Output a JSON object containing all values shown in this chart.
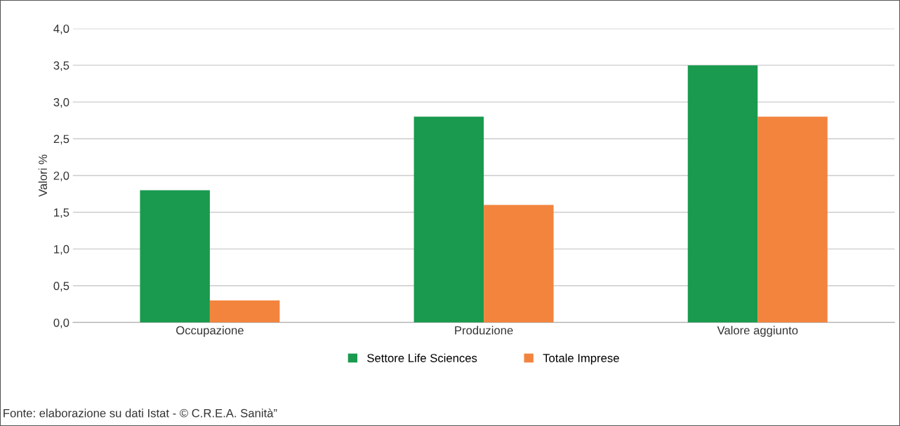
{
  "chart_data": {
    "type": "bar",
    "ylabel": "Valori %",
    "categories": [
      "Occupazione",
      "Produzione",
      "Valore aggiunto"
    ],
    "series": [
      {
        "name": "Settore Life Sciences",
        "color": "#199a4e",
        "values": [
          1.8,
          2.8,
          3.5
        ]
      },
      {
        "name": "Totale Imprese",
        "color": "#f2843e",
        "values": [
          0.3,
          1.6,
          2.8
        ]
      }
    ],
    "ylim": [
      0,
      4
    ],
    "yticks": [
      {
        "value": 0,
        "label": "0,0"
      },
      {
        "value": 0.5,
        "label": "0,5"
      },
      {
        "value": 1,
        "label": "1,0"
      },
      {
        "value": 1.5,
        "label": "1,5"
      },
      {
        "value": 2,
        "label": "2,0"
      },
      {
        "value": 2.5,
        "label": "2,5"
      },
      {
        "value": 3,
        "label": "3,0"
      },
      {
        "value": 3.5,
        "label": "3,5"
      },
      {
        "value": 4,
        "label": "4,0"
      }
    ],
    "grid": "y",
    "legend": "bottom",
    "annotations": [
      "Fonte: elaborazione su dati Istat - © C.R.E.A. Sanità”"
    ]
  }
}
